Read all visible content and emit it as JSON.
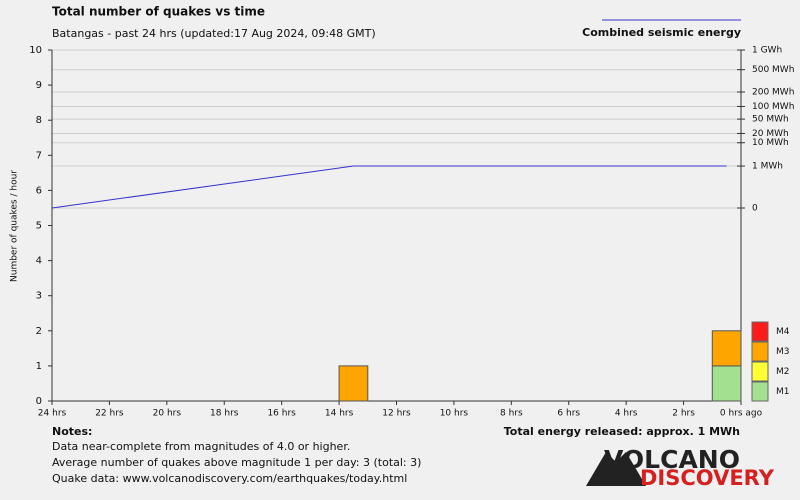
{
  "chart_data": {
    "type": "bar",
    "title": "Total number of quakes vs time",
    "subtitle": "Batangas - past 24 hrs (updated:17 Aug 2024, 09:48 GMT)",
    "y_label": "Number of quakes / hour",
    "x": [
      14,
      1
    ],
    "series": [
      {
        "name": "M1",
        "color": "#a3e08f",
        "values": [
          0,
          1
        ]
      },
      {
        "name": "M2",
        "color": "#ffff33",
        "values": [
          0,
          0
        ]
      },
      {
        "name": "M3",
        "color": "#ffa500",
        "values": [
          1,
          1
        ]
      },
      {
        "name": "M4",
        "color": "#ff1a1a",
        "values": [
          0,
          0
        ]
      }
    ],
    "energy": {
      "name": "Combined seismic energy",
      "color": "#3333cc",
      "axis": "y2",
      "x": [
        24,
        13.5,
        0.5
      ],
      "values": [
        0,
        1,
        1
      ]
    },
    "xlim": [
      24,
      0
    ],
    "xticks": [
      {
        "value": 24,
        "label": "24 hrs"
      },
      {
        "value": 22,
        "label": "22 hrs"
      },
      {
        "value": 20,
        "label": "20 hrs"
      },
      {
        "value": 18,
        "label": "18 hrs"
      },
      {
        "value": 16,
        "label": "16 hrs"
      },
      {
        "value": 14,
        "label": "14 hrs"
      },
      {
        "value": 12,
        "label": "12 hrs"
      },
      {
        "value": 10,
        "label": "10 hrs"
      },
      {
        "value": 8,
        "label": "8 hrs"
      },
      {
        "value": 6,
        "label": "6 hrs"
      },
      {
        "value": 4,
        "label": "4 hrs"
      },
      {
        "value": 2,
        "label": "2 hrs"
      },
      {
        "value": 0,
        "label": "0 hrs ago"
      }
    ],
    "ylim": [
      0,
      10
    ],
    "yticks": [
      0,
      1,
      2,
      3,
      4,
      5,
      6,
      7,
      8,
      9,
      10
    ],
    "y2lim": [
      0,
      1000
    ],
    "y2ticks": [
      {
        "value": 1000,
        "label": "1 GWh"
      },
      {
        "value": 500,
        "label": "500 MWh"
      },
      {
        "value": 200,
        "label": "200 MWh"
      },
      {
        "value": 100,
        "label": "100 MWh"
      },
      {
        "value": 50,
        "label": "50 MWh"
      },
      {
        "value": 20,
        "label": "20 MWh"
      },
      {
        "value": 10,
        "label": "10 MWh"
      },
      {
        "value": 1,
        "label": "1 MWh"
      },
      0
    ],
    "grid": true,
    "total_energy": "Total energy released: approx. 1 MWh",
    "notes_title": "Notes:",
    "notes": [
      "Data near-complete from magnitudes of 4.0 or higher.",
      "Average number of quakes above magnitude 1 per day: 3 (total: 3)",
      "Quake data: www.volcanodiscovery.com/earthquakes/today.html"
    ],
    "logo": [
      "VOLCANO",
      "DISCOVERY"
    ]
  }
}
